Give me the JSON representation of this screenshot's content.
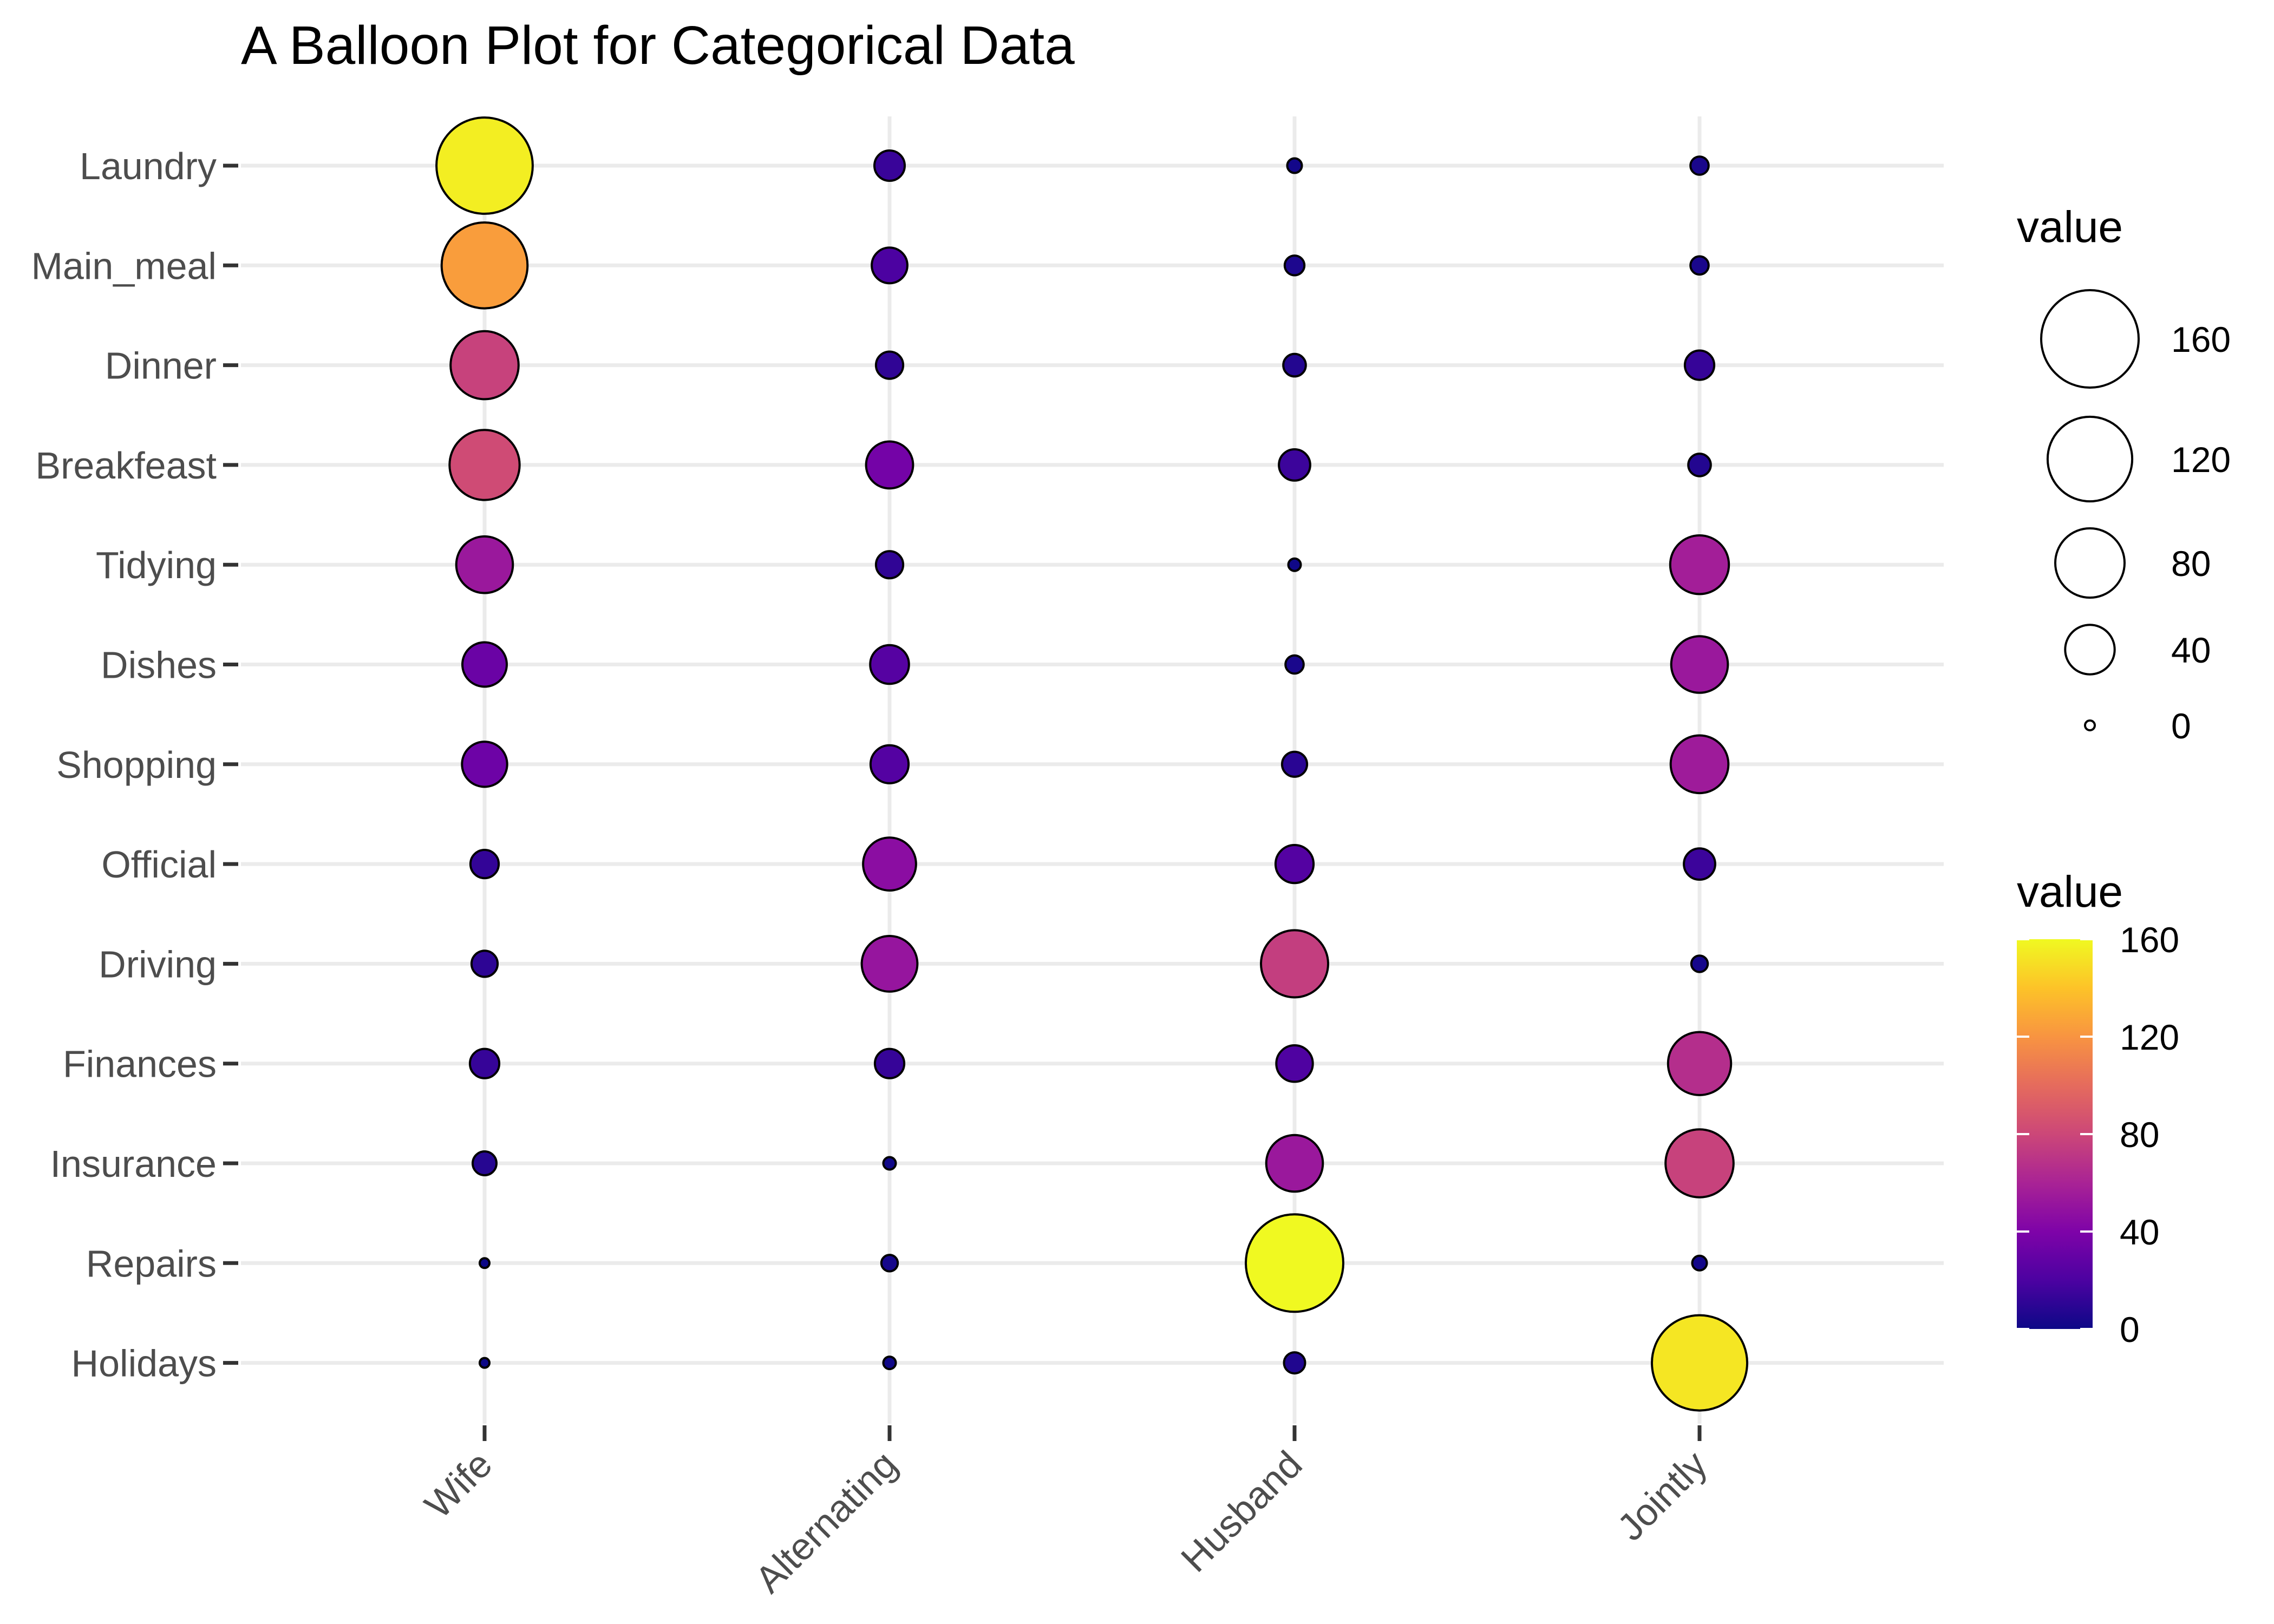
{
  "chart_data": {
    "type": "balloon",
    "title": "A Balloon Plot for Categorical Data",
    "xlabel": "",
    "ylabel": "",
    "x_categories": [
      "Wife",
      "Alternating",
      "Husband",
      "Jointly"
    ],
    "y_categories": [
      "Laundry",
      "Main_meal",
      "Dinner",
      "Breakfeast",
      "Tidying",
      "Dishes",
      "Shopping",
      "Official",
      "Driving",
      "Finances",
      "Insurance",
      "Repairs",
      "Holidays"
    ],
    "values": [
      [
        156,
        14,
        2,
        4
      ],
      [
        124,
        20,
        5,
        4
      ],
      [
        77,
        11,
        7,
        13
      ],
      [
        82,
        36,
        15,
        7
      ],
      [
        53,
        11,
        1,
        57
      ],
      [
        32,
        24,
        4,
        53
      ],
      [
        33,
        23,
        9,
        55
      ],
      [
        12,
        46,
        23,
        15
      ],
      [
        10,
        51,
        75,
        3
      ],
      [
        13,
        13,
        21,
        66
      ],
      [
        8,
        1,
        53,
        77
      ],
      [
        0,
        3,
        160,
        2
      ],
      [
        0,
        1,
        6,
        153
      ]
    ],
    "size_legend": {
      "title": "value",
      "breaks": [
        160,
        120,
        80,
        40,
        0
      ]
    },
    "color_legend": {
      "title": "value",
      "breaks": [
        160,
        120,
        80,
        40,
        0
      ],
      "range": [
        0,
        160
      ],
      "palette": "plasma"
    },
    "grid": true,
    "legend_position": "right"
  }
}
